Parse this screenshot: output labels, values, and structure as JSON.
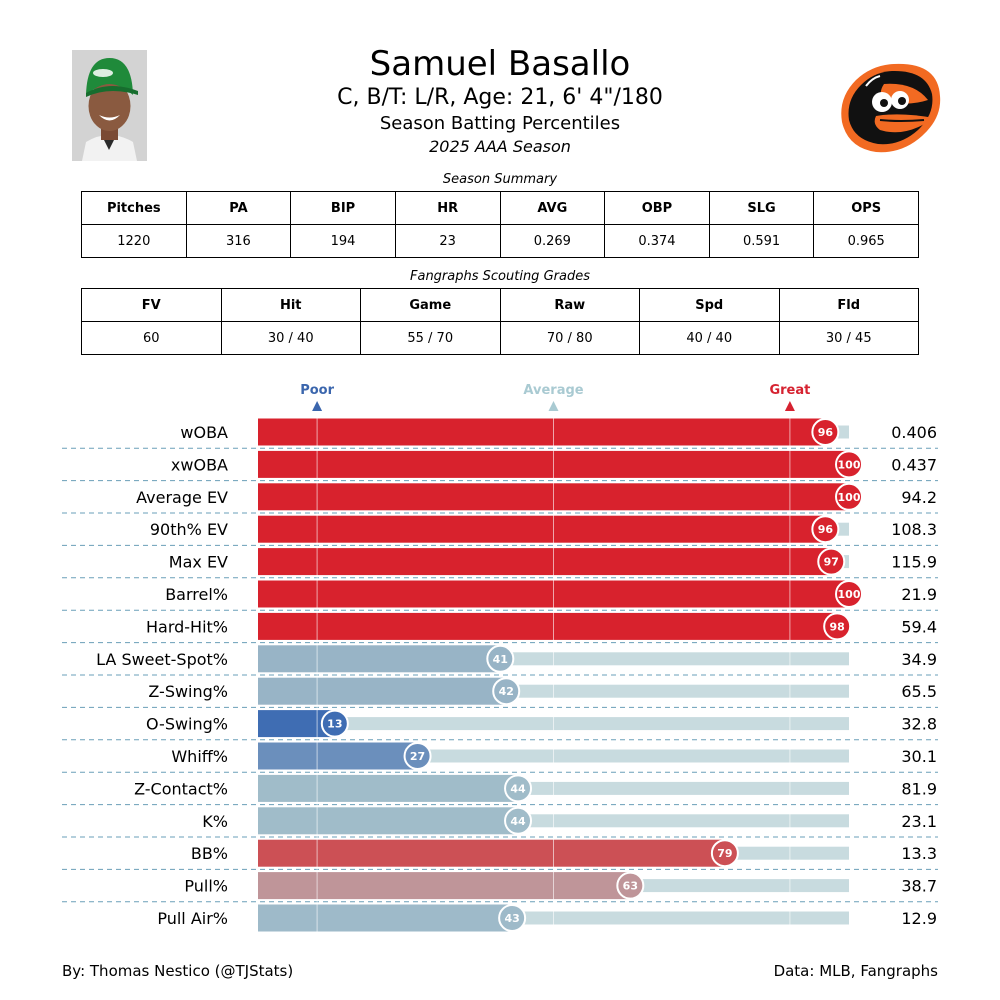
{
  "player": {
    "name": "Samuel Basallo",
    "bio": "C, B/T: L/R, Age: 21, 6' 4\"/180",
    "subtitle": "Season Batting Percentiles",
    "season": "2025 AAA Season"
  },
  "summary": {
    "caption": "Season Summary",
    "headers": [
      "Pitches",
      "PA",
      "BIP",
      "HR",
      "AVG",
      "OBP",
      "SLG",
      "OPS"
    ],
    "values": [
      "1220",
      "316",
      "194",
      "23",
      "0.269",
      "0.374",
      "0.591",
      "0.965"
    ]
  },
  "scouting": {
    "caption": "Fangraphs Scouting Grades",
    "headers": [
      "FV",
      "Hit",
      "Game",
      "Raw",
      "Spd",
      "Fld"
    ],
    "values": [
      "60",
      "30 / 40",
      "55 / 70",
      "70 / 80",
      "40 / 40",
      "30 / 45"
    ]
  },
  "chart_data": {
    "type": "bar",
    "orientation": "horizontal",
    "xlim": [
      0,
      100
    ],
    "markers": [
      {
        "label": "Poor",
        "value": 10,
        "color": "#3b66ad"
      },
      {
        "label": "Average",
        "value": 50,
        "color": "#a9cad2"
      },
      {
        "label": "Great",
        "value": 90,
        "color": "#d62230"
      }
    ],
    "categories": [
      "wOBA",
      "xwOBA",
      "Average EV",
      "90th% EV",
      "Max EV",
      "Barrel%",
      "Hard-Hit%",
      "LA Sweet-Spot%",
      "Z-Swing%",
      "O-Swing%",
      "Whiff%",
      "Z-Contact%",
      "K%",
      "BB%",
      "Pull%",
      "Pull Air%"
    ],
    "percentiles": [
      96,
      100,
      100,
      96,
      97,
      100,
      98,
      41,
      42,
      13,
      27,
      44,
      44,
      79,
      63,
      43
    ],
    "stat_values": [
      "0.406",
      "0.437",
      "94.2",
      "108.3",
      "115.9",
      "21.9",
      "59.4",
      "34.9",
      "65.5",
      "32.8",
      "30.1",
      "81.9",
      "23.1",
      "13.3",
      "38.7",
      "12.9"
    ],
    "bar_colors": [
      "#d8222d",
      "#d8222d",
      "#d8222d",
      "#d8222d",
      "#d8222d",
      "#d8222d",
      "#d8222d",
      "#98b4c6",
      "#98b4c6",
      "#3f6db3",
      "#6b8fbc",
      "#a0bcc9",
      "#a0bcc9",
      "#cc5055",
      "#bf9599",
      "#9ebac9"
    ],
    "track_color": "#c8dbdf"
  },
  "footer": {
    "left": "By: Thomas Nestico (@TJStats)",
    "right": "Data: MLB, Fangraphs"
  }
}
